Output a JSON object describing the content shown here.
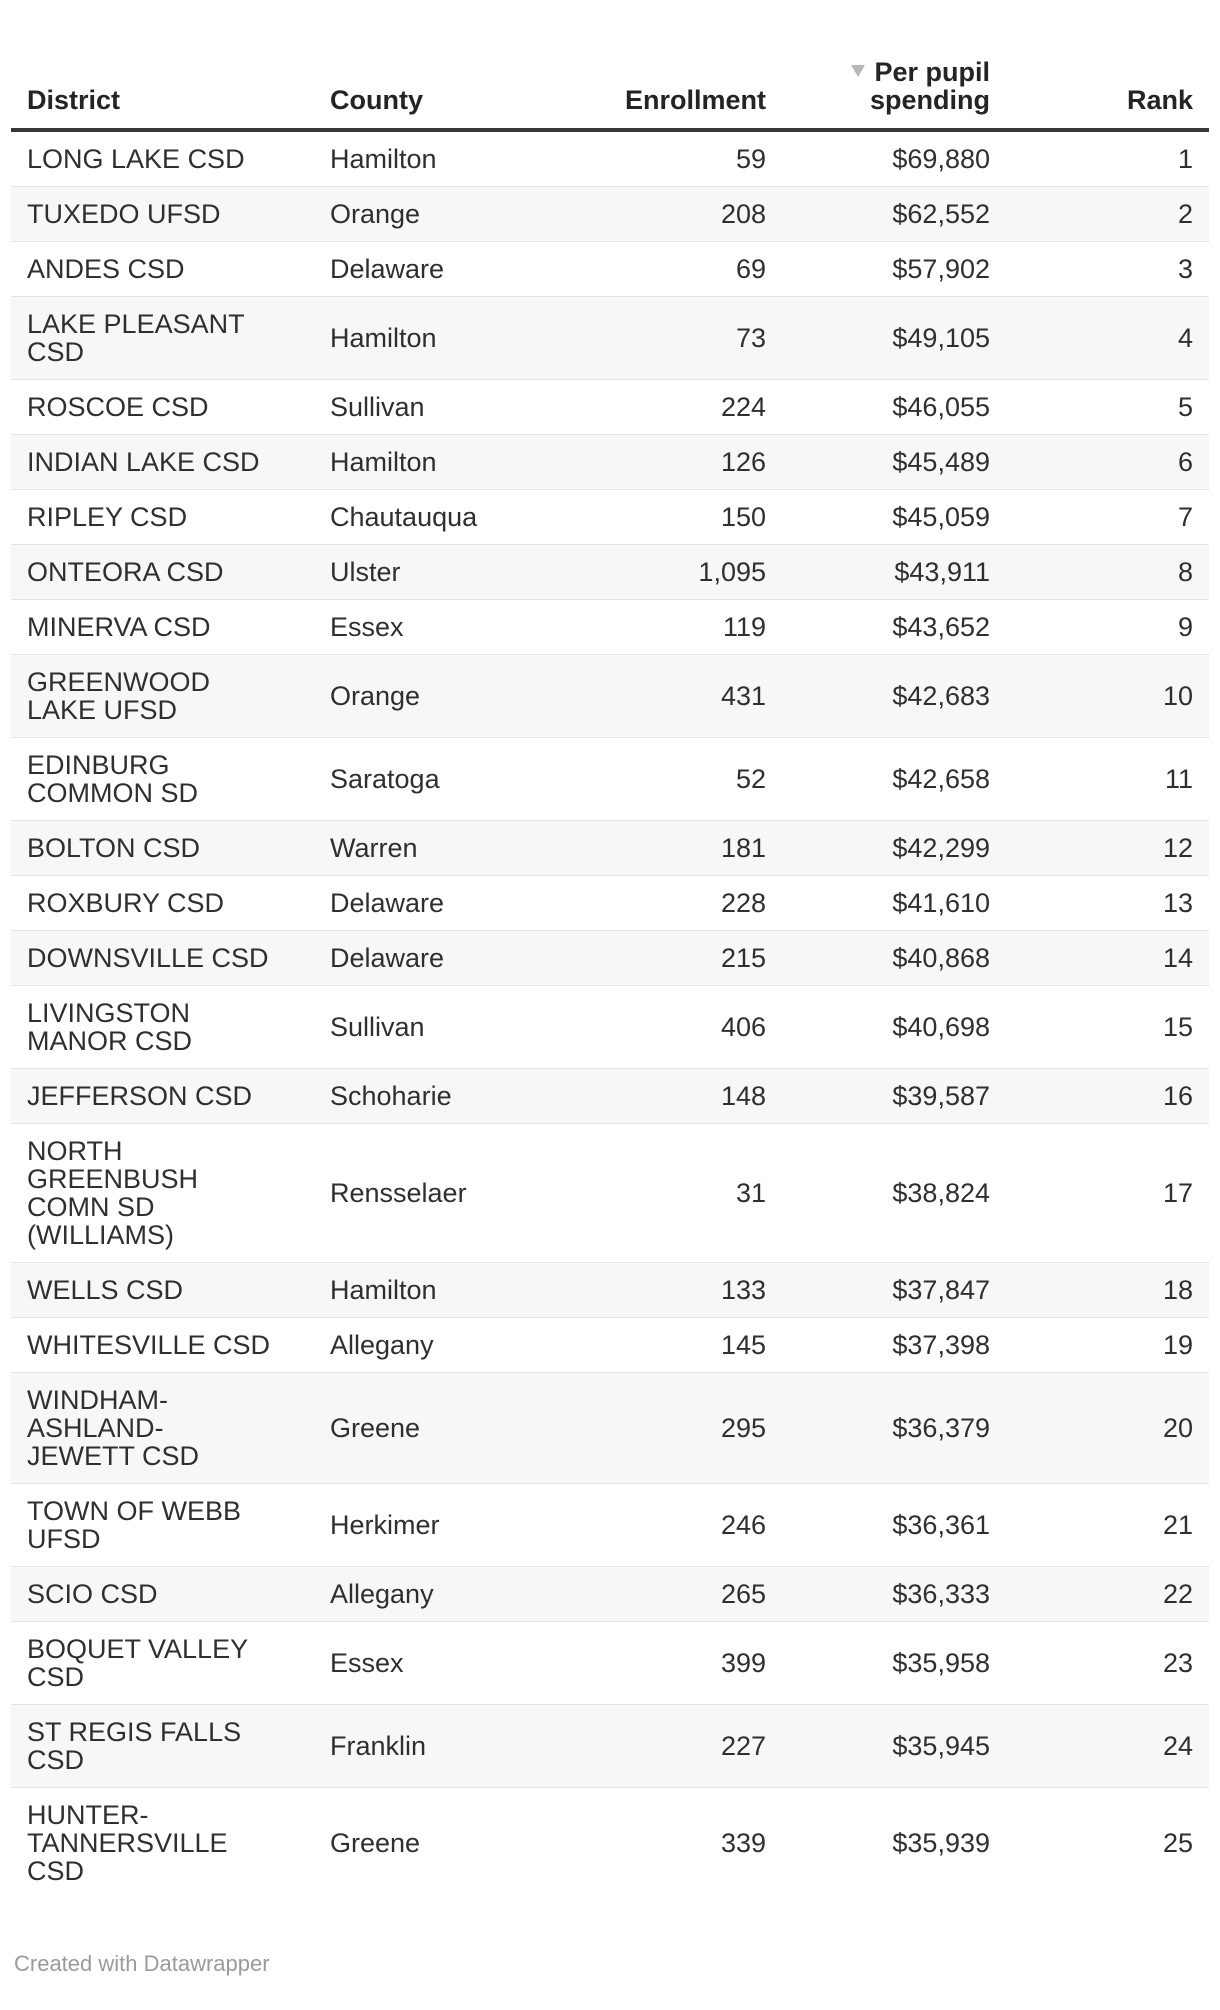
{
  "chart_data": {
    "type": "table",
    "sort": {
      "column": "Per pupil spending",
      "direction": "desc"
    },
    "columns": [
      {
        "key": "district",
        "label": "District",
        "align": "left",
        "sorted": false
      },
      {
        "key": "county",
        "label": "County",
        "align": "left",
        "sorted": false
      },
      {
        "key": "enrollment",
        "label": "Enrollment",
        "align": "right",
        "sorted": false
      },
      {
        "key": "spending",
        "label": "Per pupil\nspending",
        "align": "right",
        "sorted": true
      },
      {
        "key": "rank",
        "label": "Rank",
        "align": "right",
        "sorted": false
      }
    ],
    "rows": [
      {
        "district": "LONG LAKE CSD",
        "county": "Hamilton",
        "enrollment": "59",
        "spending": "$69,880",
        "rank": "1"
      },
      {
        "district": "TUXEDO UFSD",
        "county": "Orange",
        "enrollment": "208",
        "spending": "$62,552",
        "rank": "2"
      },
      {
        "district": "ANDES CSD",
        "county": "Delaware",
        "enrollment": "69",
        "spending": "$57,902",
        "rank": "3"
      },
      {
        "district": "LAKE PLEASANT\nCSD",
        "county": "Hamilton",
        "enrollment": "73",
        "spending": "$49,105",
        "rank": "4"
      },
      {
        "district": "ROSCOE CSD",
        "county": "Sullivan",
        "enrollment": "224",
        "spending": "$46,055",
        "rank": "5"
      },
      {
        "district": "INDIAN LAKE CSD",
        "county": "Hamilton",
        "enrollment": "126",
        "spending": "$45,489",
        "rank": "6"
      },
      {
        "district": "RIPLEY CSD",
        "county": "Chautauqua",
        "enrollment": "150",
        "spending": "$45,059",
        "rank": "7"
      },
      {
        "district": "ONTEORA CSD",
        "county": "Ulster",
        "enrollment": "1,095",
        "spending": "$43,911",
        "rank": "8"
      },
      {
        "district": "MINERVA CSD",
        "county": "Essex",
        "enrollment": "119",
        "spending": "$43,652",
        "rank": "9"
      },
      {
        "district": "GREENWOOD\nLAKE UFSD",
        "county": "Orange",
        "enrollment": "431",
        "spending": "$42,683",
        "rank": "10"
      },
      {
        "district": "EDINBURG\nCOMMON SD",
        "county": "Saratoga",
        "enrollment": "52",
        "spending": "$42,658",
        "rank": "11"
      },
      {
        "district": "BOLTON CSD",
        "county": "Warren",
        "enrollment": "181",
        "spending": "$42,299",
        "rank": "12"
      },
      {
        "district": "ROXBURY CSD",
        "county": "Delaware",
        "enrollment": "228",
        "spending": "$41,610",
        "rank": "13"
      },
      {
        "district": "DOWNSVILLE CSD",
        "county": "Delaware",
        "enrollment": "215",
        "spending": "$40,868",
        "rank": "14"
      },
      {
        "district": "LIVINGSTON\nMANOR CSD",
        "county": "Sullivan",
        "enrollment": "406",
        "spending": "$40,698",
        "rank": "15"
      },
      {
        "district": "JEFFERSON CSD",
        "county": "Schoharie",
        "enrollment": "148",
        "spending": "$39,587",
        "rank": "16"
      },
      {
        "district": "NORTH\nGREENBUSH\nCOMN SD\n(WILLIAMS)",
        "county": "Rensselaer",
        "enrollment": "31",
        "spending": "$38,824",
        "rank": "17"
      },
      {
        "district": "WELLS CSD",
        "county": "Hamilton",
        "enrollment": "133",
        "spending": "$37,847",
        "rank": "18"
      },
      {
        "district": "WHITESVILLE CSD",
        "county": "Allegany",
        "enrollment": "145",
        "spending": "$37,398",
        "rank": "19"
      },
      {
        "district": "WINDHAM-\nASHLAND-\nJEWETT CSD",
        "county": "Greene",
        "enrollment": "295",
        "spending": "$36,379",
        "rank": "20"
      },
      {
        "district": "TOWN OF WEBB\nUFSD",
        "county": "Herkimer",
        "enrollment": "246",
        "spending": "$36,361",
        "rank": "21"
      },
      {
        "district": "SCIO CSD",
        "county": "Allegany",
        "enrollment": "265",
        "spending": "$36,333",
        "rank": "22"
      },
      {
        "district": "BOQUET VALLEY\nCSD",
        "county": "Essex",
        "enrollment": "399",
        "spending": "$35,958",
        "rank": "23"
      },
      {
        "district": "ST REGIS FALLS\nCSD",
        "county": "Franklin",
        "enrollment": "227",
        "spending": "$35,945",
        "rank": "24"
      },
      {
        "district": "HUNTER-\nTANNERSVILLE\nCSD",
        "county": "Greene",
        "enrollment": "339",
        "spending": "$35,939",
        "rank": "25"
      }
    ]
  },
  "footer": {
    "credit": "Created with Datawrapper"
  },
  "colors": {
    "header_text": "#242424",
    "body_text": "#2f2f2f",
    "header_rule": "#373737",
    "stripe": "#f7f7f7",
    "row_border": "#e4e4e4",
    "sort_arrow": "#b8b8b8",
    "credit_text": "#9a9a9a",
    "background": "#ffffff"
  }
}
